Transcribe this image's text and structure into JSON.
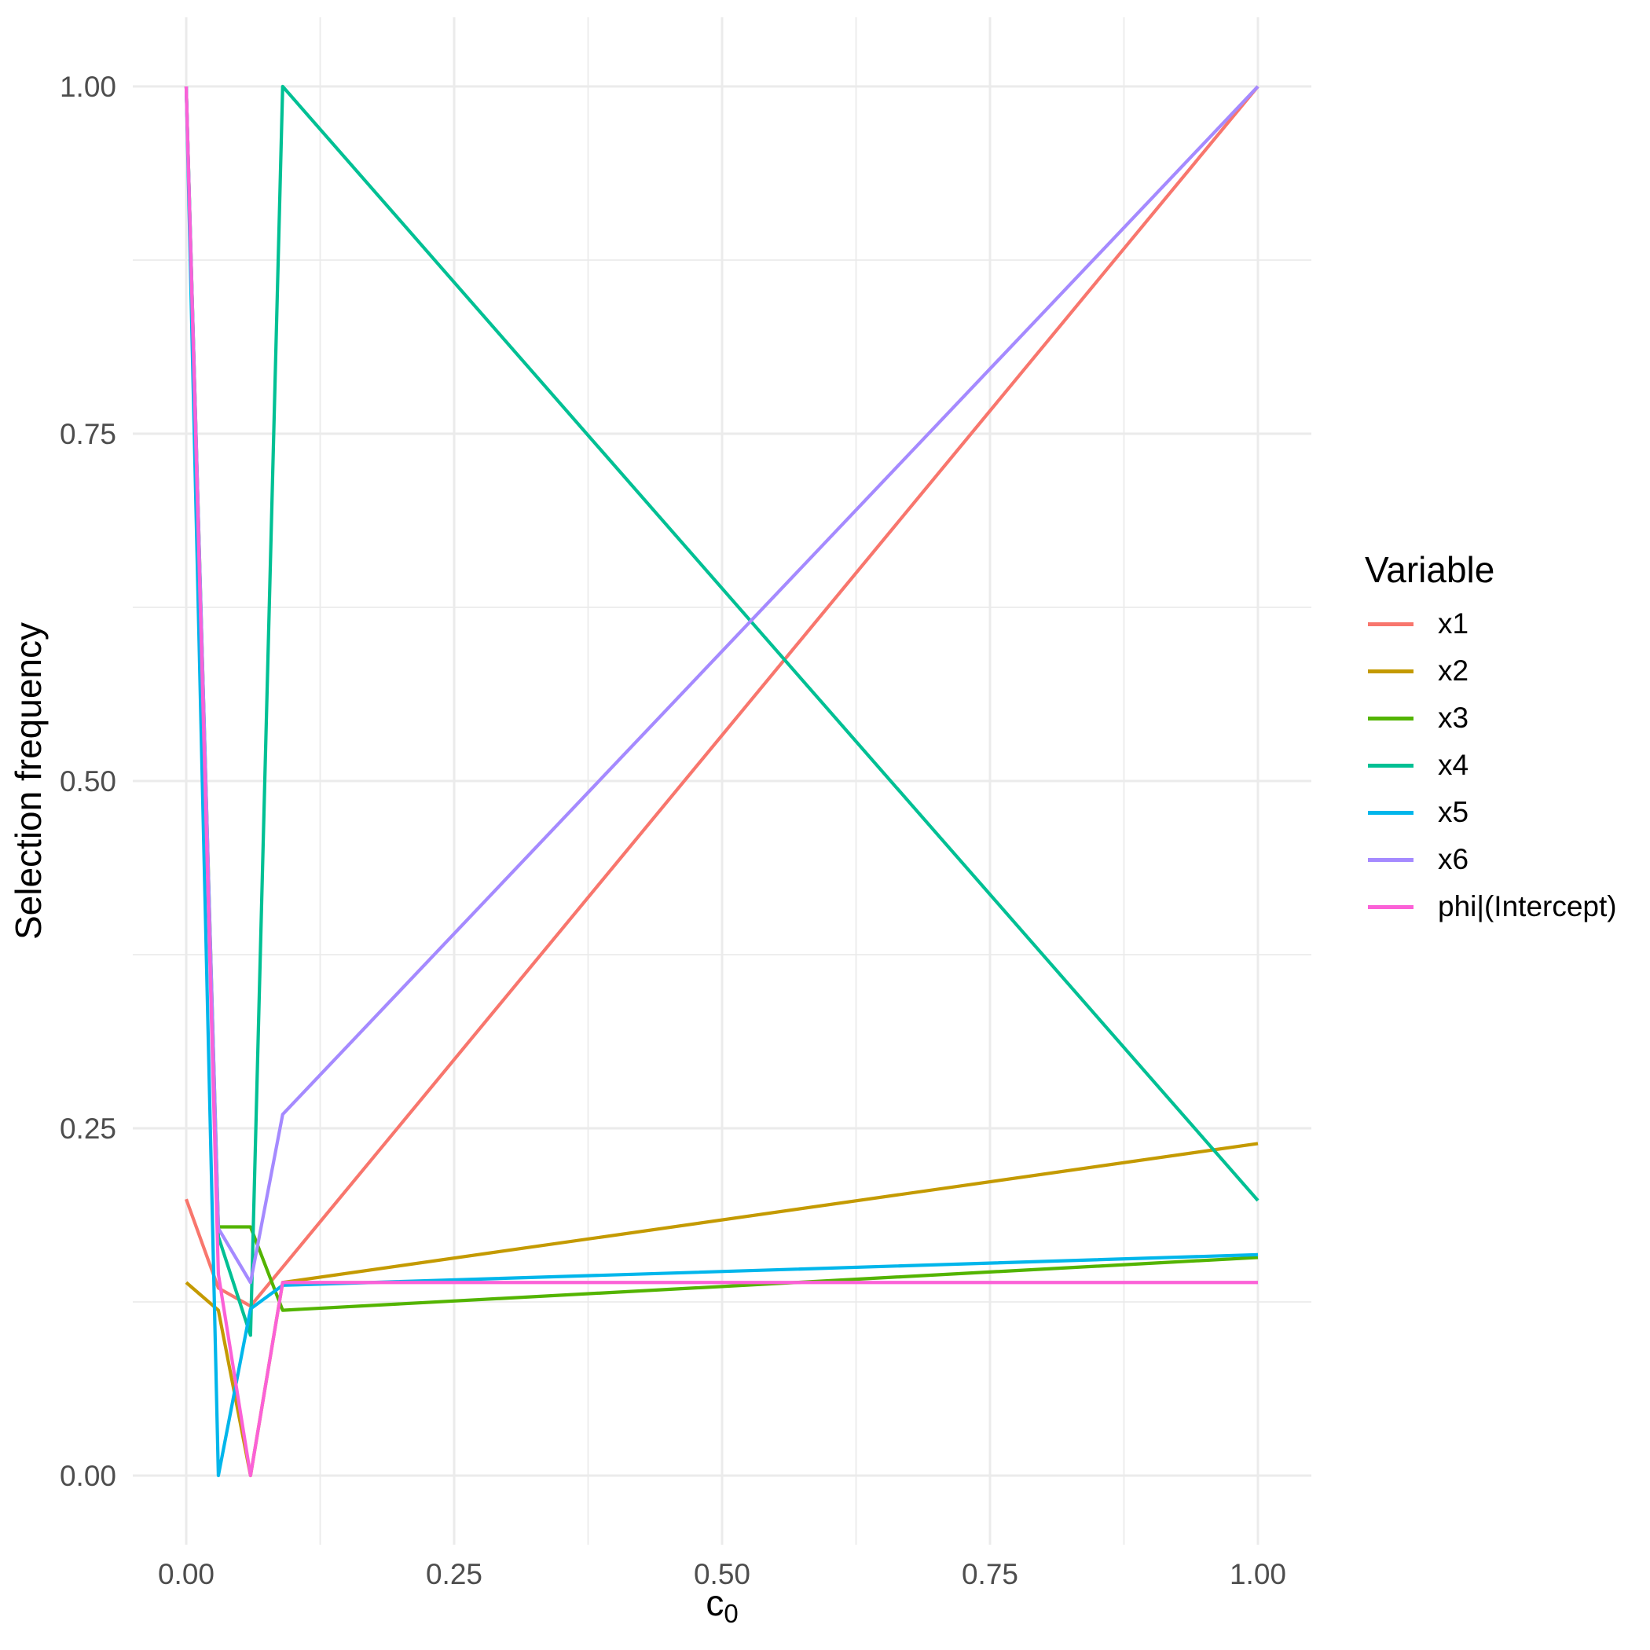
{
  "chart_data": {
    "type": "line",
    "title": "",
    "x": [
      0,
      0.03,
      0.06,
      0.09,
      1.0
    ],
    "series": [
      {
        "name": "x1",
        "color": "#F8766D",
        "values": [
          0.199,
          0.135,
          0.122,
          0.15,
          1.0
        ]
      },
      {
        "name": "x2",
        "color": "#C49A00",
        "values": [
          0.139,
          0.119,
          0.0,
          0.139,
          0.239
        ]
      },
      {
        "name": "x3",
        "color": "#53B400",
        "values": [
          1.0,
          0.179,
          0.179,
          0.119,
          0.157
        ]
      },
      {
        "name": "x4",
        "color": "#00C094",
        "values": [
          1.0,
          0.172,
          0.101,
          1.0,
          0.198
        ]
      },
      {
        "name": "x5",
        "color": "#00B6EB",
        "values": [
          1.0,
          0.0,
          0.12,
          0.137,
          0.159
        ]
      },
      {
        "name": "x6",
        "color": "#A58AFF",
        "values": [
          1.0,
          0.178,
          0.139,
          0.26,
          1.0
        ]
      },
      {
        "name": "phi|(Intercept)",
        "color": "#FB61D7",
        "values": [
          1.0,
          0.145,
          0.0,
          0.139,
          0.139
        ]
      }
    ],
    "x_axis": {
      "title_main": "c",
      "title_sub": "0",
      "ticks": [
        {
          "value": 0.0,
          "label": "0.00"
        },
        {
          "value": 0.25,
          "label": "0.25"
        },
        {
          "value": 0.5,
          "label": "0.50"
        },
        {
          "value": 0.75,
          "label": "0.75"
        },
        {
          "value": 1.0,
          "label": "1.00"
        }
      ]
    },
    "y_axis": {
      "title": "Selection frequency",
      "ticks": [
        {
          "value": 0.0,
          "label": "0.00"
        },
        {
          "value": 0.25,
          "label": "0.25"
        },
        {
          "value": 0.5,
          "label": "0.50"
        },
        {
          "value": 0.75,
          "label": "0.75"
        },
        {
          "value": 1.0,
          "label": "1.00"
        }
      ]
    },
    "xlim": [
      0,
      1
    ],
    "ylim": [
      0,
      1
    ],
    "grid": true,
    "grid_color": "#EBEBEB",
    "tick_label_color": "#4D4D4D",
    "axis_title_color": "#000000",
    "legend": {
      "title": "Variable",
      "position": "right"
    }
  }
}
